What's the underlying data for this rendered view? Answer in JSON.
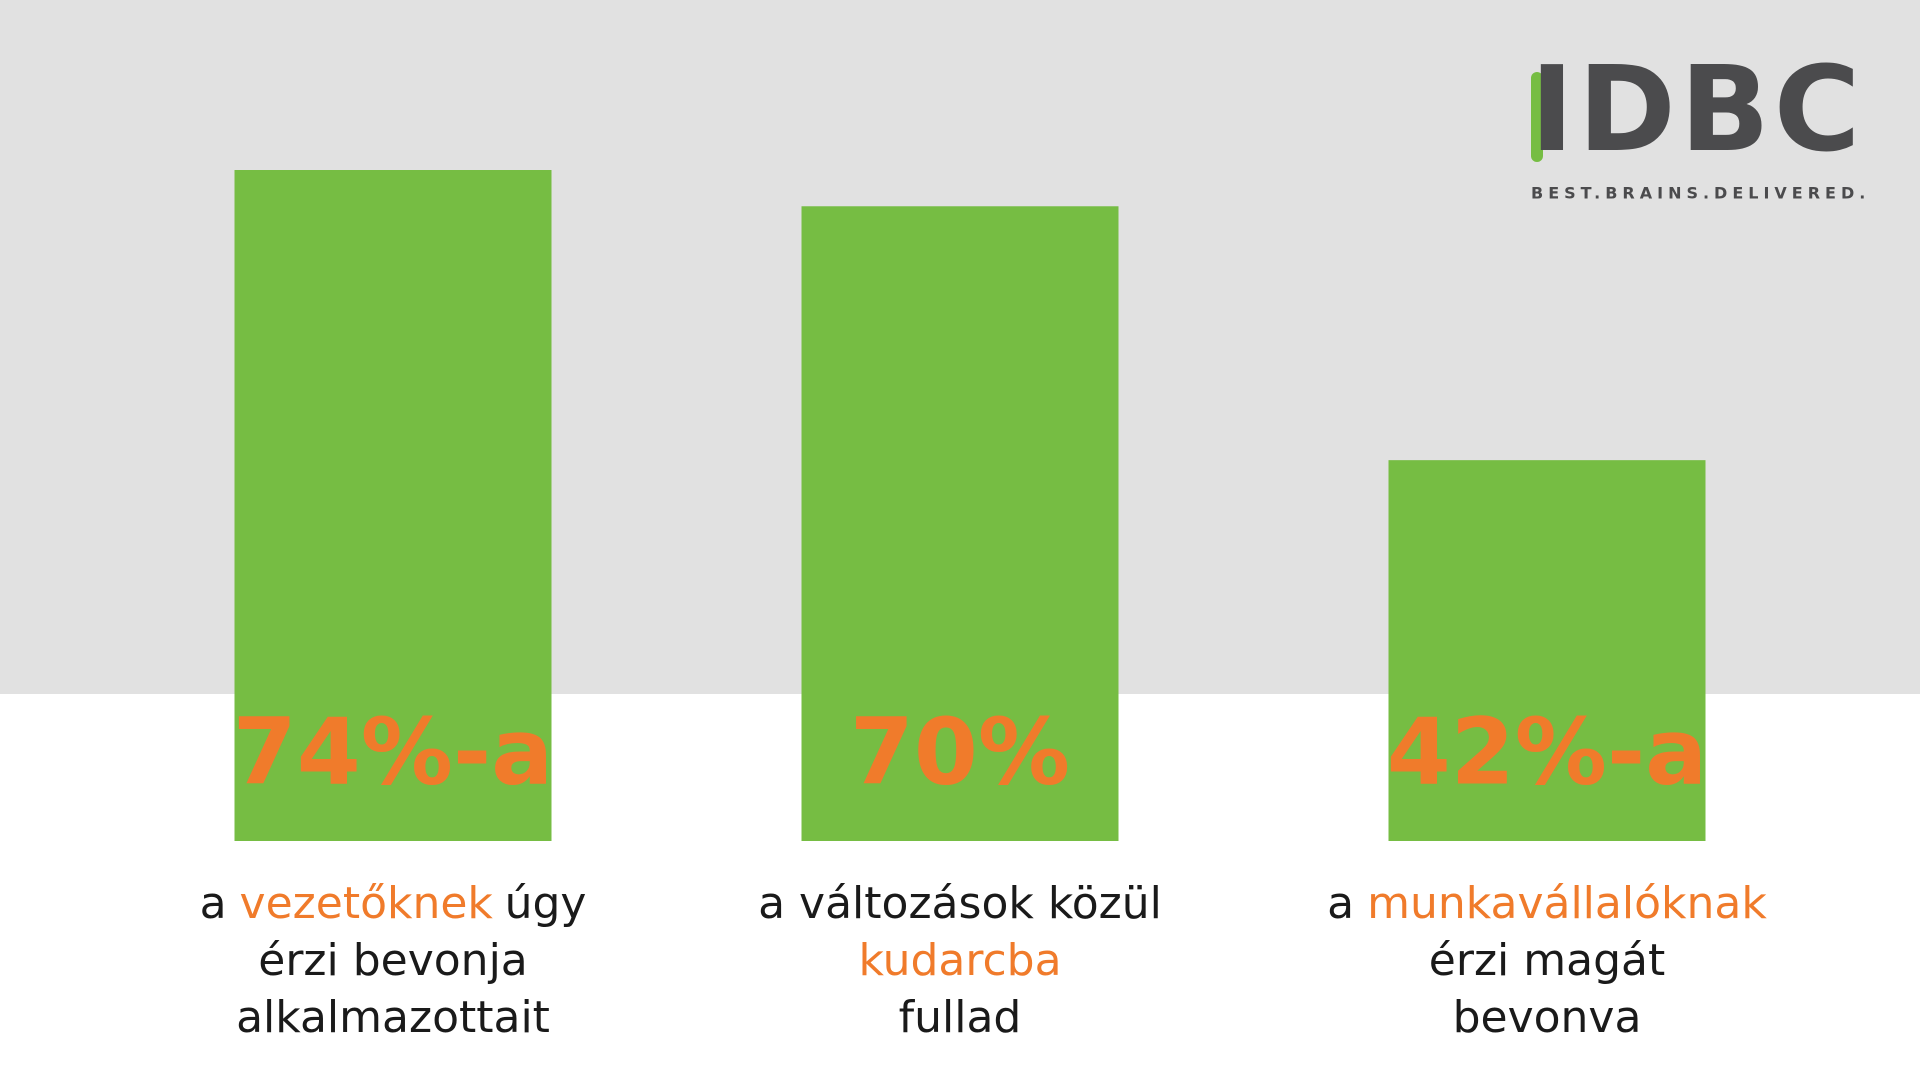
{
  "chart_data": {
    "type": "bar",
    "color": "#76bd43",
    "label_color": "#f07b2b",
    "values": [
      74,
      70,
      42
    ],
    "value_labels": [
      "74%-a",
      "70%",
      "42%-a"
    ],
    "categories": [
      [
        [
          {
            "text": "a"
          },
          {
            "text": "vezetőknek",
            "highlight": true
          },
          {
            "text": "úgy"
          }
        ],
        [
          {
            "text": "érzi bevonja"
          }
        ],
        [
          {
            "text": "alkalmazottait"
          }
        ]
      ],
      [
        [
          {
            "text": "a változások közül"
          }
        ],
        [
          {
            "text": "kudarcba",
            "highlight": true
          }
        ],
        [
          {
            "text": "fullad"
          }
        ]
      ],
      [
        [
          {
            "text": "a"
          },
          {
            "text": "munkavállalóknak",
            "highlight": true
          }
        ],
        [
          {
            "text": "érzi magát"
          }
        ],
        [
          {
            "text": "bevonva"
          }
        ]
      ]
    ]
  },
  "logo": {
    "name": "IDBC",
    "tagline": "BEST.BRAINS.DELIVERED."
  }
}
